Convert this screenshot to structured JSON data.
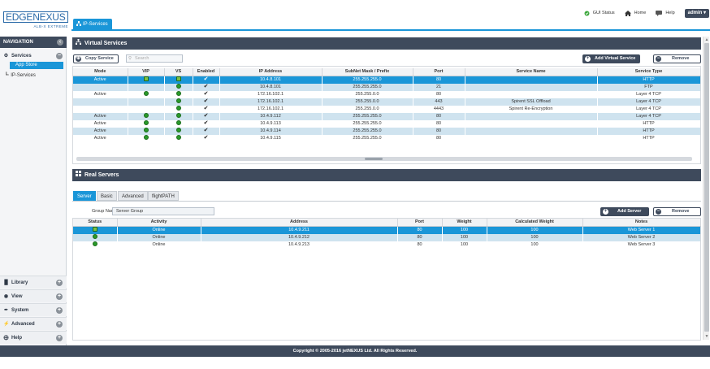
{
  "logo": {
    "brand": "EDGENEXUS",
    "sub": "ALB-X EXTREME"
  },
  "tab": {
    "label": "IP-Services"
  },
  "topbar": {
    "gui_status": "GUI Status",
    "home": "Home",
    "help": "Help",
    "user": "admin"
  },
  "sidebar": {
    "header": "NAVIGATION",
    "services": "Services",
    "app_store": "App Store",
    "ip_services": "IP-Services",
    "library": "Library",
    "view": "View",
    "system": "System",
    "advanced": "Advanced",
    "help": "Help"
  },
  "virtual_services": {
    "title": "Virtual Services",
    "copy_label": "Copy Service",
    "search_placeholder": "Search",
    "add_label": "Add Virtual Service",
    "remove_label": "Remove",
    "columns": [
      "Mode",
      "VIP",
      "VS",
      "Enabled",
      "IP Address",
      "SubNet Mask / Prefix",
      "Port",
      "Service Name",
      "Service Type"
    ],
    "rows": [
      {
        "mode": "Active",
        "vip": true,
        "vs": true,
        "enabled": true,
        "ip": "10.4.8.101",
        "mask": "255.255.255.0",
        "port": "80",
        "name": "",
        "type": "HTTP"
      },
      {
        "mode": "",
        "vip": false,
        "vs": true,
        "enabled": true,
        "ip": "10.4.8.101",
        "mask": "255.255.255.0",
        "port": "21",
        "name": "",
        "type": "FTP"
      },
      {
        "mode": "Active",
        "vip": true,
        "vs": true,
        "enabled": true,
        "ip": "172.16.102.1",
        "mask": "255.255.0.0",
        "port": "80",
        "name": "",
        "type": "Layer 4 TCP"
      },
      {
        "mode": "",
        "vip": false,
        "vs": true,
        "enabled": true,
        "ip": "172.16.102.1",
        "mask": "255.255.0.0",
        "port": "443",
        "name": "Spirent SSL Offload",
        "type": "Layer 4 TCP"
      },
      {
        "mode": "",
        "vip": false,
        "vs": true,
        "enabled": true,
        "ip": "172.16.102.1",
        "mask": "255.255.0.0",
        "port": "4443",
        "name": "Spirent Re-Encryption",
        "type": "Layer 4 TCP"
      },
      {
        "mode": "Active",
        "vip": true,
        "vs": true,
        "enabled": true,
        "ip": "10.4.9.112",
        "mask": "255.255.255.0",
        "port": "80",
        "name": "",
        "type": "Layer 4 TCP"
      },
      {
        "mode": "Active",
        "vip": true,
        "vs": true,
        "enabled": true,
        "ip": "10.4.9.113",
        "mask": "255.255.255.0",
        "port": "80",
        "name": "",
        "type": "HTTP"
      },
      {
        "mode": "Active",
        "vip": true,
        "vs": true,
        "enabled": true,
        "ip": "10.4.9.114",
        "mask": "255.255.255.0",
        "port": "80",
        "name": "",
        "type": "HTTP"
      },
      {
        "mode": "Active",
        "vip": true,
        "vs": true,
        "enabled": true,
        "ip": "10.4.9.115",
        "mask": "255.255.255.0",
        "port": "80",
        "name": "",
        "type": "HTTP"
      }
    ]
  },
  "real_servers": {
    "title": "Real Servers",
    "tabs": [
      "Server",
      "Basic",
      "Advanced",
      "flightPATH"
    ],
    "group_label": "Group Name",
    "group_value": "Server Group",
    "add_label": "Add Server",
    "remove_label": "Remove",
    "columns": [
      "Status",
      "Activity",
      "Address",
      "Port",
      "Weight",
      "Calculated Weight",
      "Notes"
    ],
    "rows": [
      {
        "activity": "Online",
        "address": "10.4.9.211",
        "port": "80",
        "weight": "100",
        "calc": "100",
        "notes": "Web Server 1"
      },
      {
        "activity": "Online",
        "address": "10.4.9.212",
        "port": "80",
        "weight": "100",
        "calc": "100",
        "notes": "Web Server 2"
      },
      {
        "activity": "Online",
        "address": "10.4.9.213",
        "port": "80",
        "weight": "100",
        "calc": "100",
        "notes": "Web Server 3"
      }
    ]
  },
  "footer": {
    "copyright": "Copyright © 2005-2016 jetNEXUS Ltd. All Rights Reserved."
  },
  "colors": {
    "accent": "#1a96d8",
    "header_bg": "#3e4a5c",
    "row_alt": "#cfe3ef",
    "status_green": "#2a9a2a"
  }
}
